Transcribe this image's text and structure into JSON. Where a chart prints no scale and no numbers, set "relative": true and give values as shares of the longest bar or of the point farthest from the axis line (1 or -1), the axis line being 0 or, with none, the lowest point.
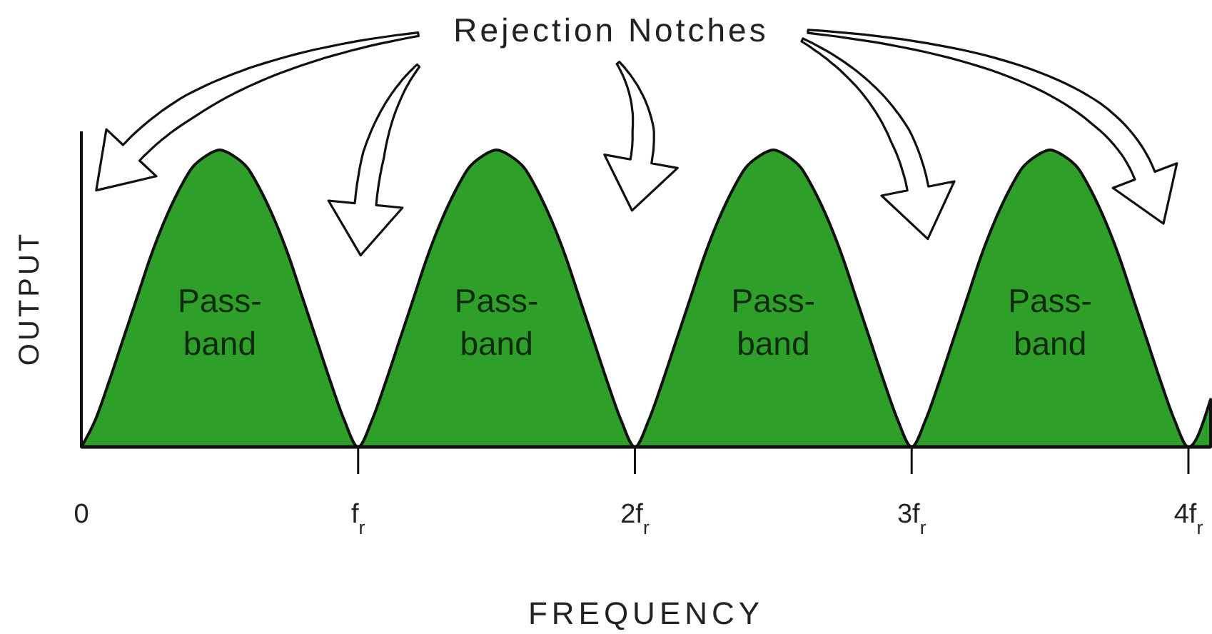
{
  "chart_data": {
    "type": "area",
    "relative": true,
    "xlabel": "FREQUENCY",
    "ylabel": "OUTPUT",
    "color": "#2ea02a",
    "xlim": [
      0,
      4.08
    ],
    "xticks": [
      0,
      {
        "value": 1,
        "label": "f$_{r}$"
      },
      {
        "value": 2,
        "label": "2f$_{r}$"
      },
      {
        "value": 3,
        "label": "3f$_{r}$"
      },
      {
        "value": 4,
        "label": "4f$_{r}$"
      }
    ],
    "x": [
      0,
      0.05,
      0.1,
      0.15,
      0.2,
      0.25,
      0.3,
      0.35,
      0.4,
      0.45,
      0.5,
      0.55,
      0.6,
      0.65,
      0.7,
      0.75,
      0.8,
      0.85,
      0.9,
      0.95,
      1,
      1.05,
      1.1,
      1.15,
      1.2,
      1.25,
      1.3,
      1.35,
      1.4,
      1.45,
      1.5,
      1.55,
      1.6,
      1.65,
      1.7,
      1.75,
      1.8,
      1.85,
      1.9,
      1.95,
      2,
      2.05,
      2.1,
      2.15,
      2.2,
      2.25,
      2.3,
      2.35,
      2.4,
      2.45,
      2.5,
      2.55,
      2.6,
      2.65,
      2.7,
      2.75,
      2.8,
      2.85,
      2.9,
      2.95,
      3,
      3.05,
      3.1,
      3.15,
      3.2,
      3.25,
      3.3,
      3.35,
      3.4,
      3.45,
      3.5,
      3.55,
      3.6,
      3.65,
      3.7,
      3.75,
      3.8,
      3.85,
      3.9,
      3.95,
      4,
      4.08
    ],
    "values": [
      0,
      0.09,
      0.22,
      0.36,
      0.5,
      0.64,
      0.76,
      0.86,
      0.94,
      0.98,
      1,
      0.98,
      0.94,
      0.86,
      0.76,
      0.64,
      0.5,
      0.36,
      0.22,
      0.09,
      0,
      0.09,
      0.22,
      0.36,
      0.5,
      0.64,
      0.76,
      0.86,
      0.94,
      0.98,
      1,
      0.98,
      0.94,
      0.86,
      0.76,
      0.64,
      0.5,
      0.36,
      0.22,
      0.09,
      0,
      0.09,
      0.22,
      0.36,
      0.5,
      0.64,
      0.76,
      0.86,
      0.94,
      0.98,
      1,
      0.98,
      0.94,
      0.86,
      0.76,
      0.64,
      0.5,
      0.36,
      0.22,
      0.09,
      0,
      0.09,
      0.22,
      0.36,
      0.5,
      0.64,
      0.76,
      0.86,
      0.94,
      0.98,
      1,
      0.98,
      0.94,
      0.86,
      0.76,
      0.64,
      0.5,
      0.36,
      0.22,
      0.09,
      0,
      0.16
    ],
    "annotations": [
      "Rejection Notches",
      "Pass-band",
      "Pass-band",
      "Pass-band",
      "Pass-band"
    ]
  }
}
